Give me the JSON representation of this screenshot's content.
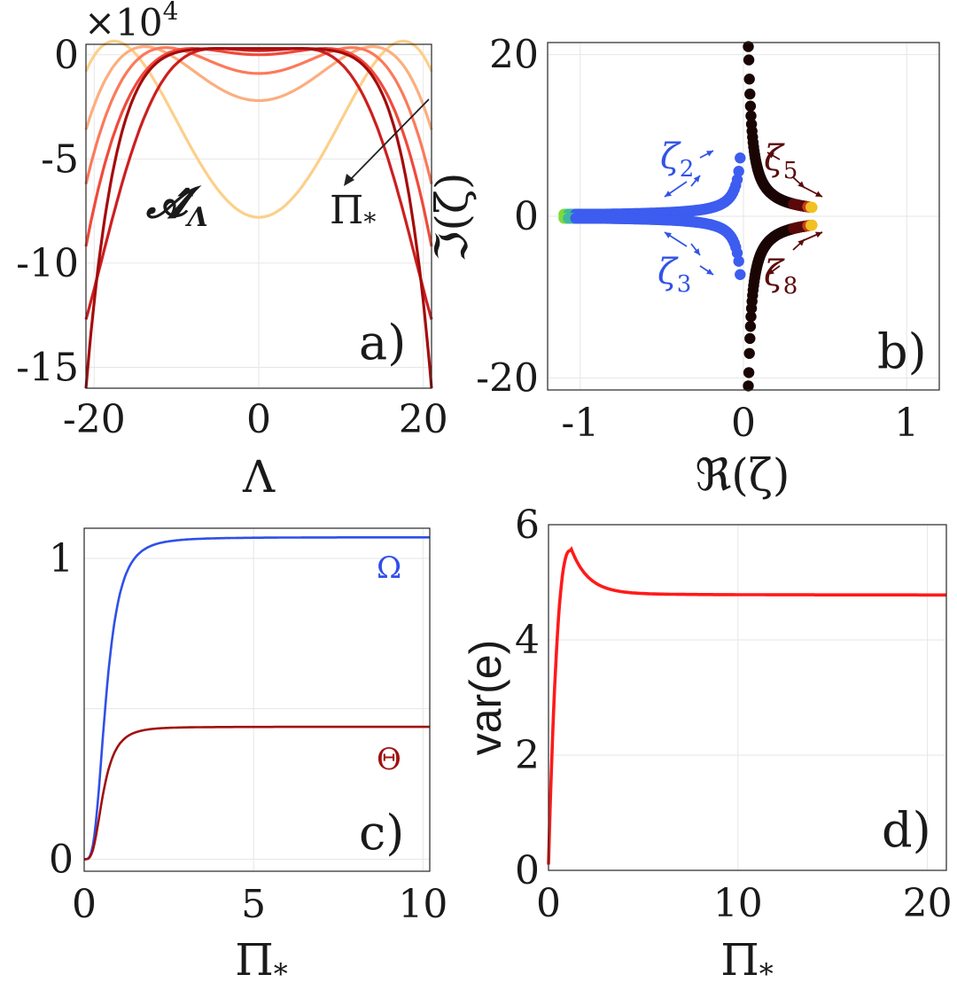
{
  "figure": {
    "panels": [
      "a)",
      "b)",
      "c)",
      "d)"
    ]
  },
  "chart_data": [
    {
      "id": "a",
      "type": "line",
      "title": "",
      "xlabel": "Λ",
      "ylabel": "",
      "multiplier_label": "×10",
      "multiplier_exponent": "4",
      "xlim": [
        -21,
        21
      ],
      "ylim": [
        -16,
        0.5
      ],
      "xticks": [
        -20,
        0,
        20
      ],
      "yticks": [
        0,
        -5,
        -10,
        -15
      ],
      "xtick_labels": [
        "-20",
        "0",
        "20"
      ],
      "ytick_labels": [
        "0",
        "-5",
        "-10",
        "-15"
      ],
      "grid": true,
      "curve_label": "𝓐̂",
      "curve_label_sub": "Λ",
      "arrow_label": "Π",
      "arrow_label_sub": "*",
      "panel_label": "a)",
      "series": [
        {
          "color": "#fdcf8a",
          "max": 0.3,
          "center": -7.8,
          "peakPos": 17,
          "min_edge": -0.8
        },
        {
          "color": "#fcae7e",
          "max": 0.3,
          "center": -2.2,
          "peakPos": 13.5,
          "min_edge": -3.6
        },
        {
          "color": "#fb7a5a",
          "max": 0.3,
          "center": -0.9,
          "peakPos": 11,
          "min_edge": -6.2
        },
        {
          "color": "#ef4a3c",
          "max": 0.3,
          "center": 0.0,
          "peakPos": 8,
          "min_edge": -9.2
        },
        {
          "color": "#cc1f1f",
          "max": 0.3,
          "center": 0.2,
          "peakPos": 5,
          "min_edge": -12.7
        },
        {
          "color": "#a40b0b",
          "max": 0.3,
          "center": 0.3,
          "peakPos": 2,
          "min_edge": -16.0
        }
      ]
    },
    {
      "id": "b",
      "type": "scatter",
      "title": "",
      "xlabel": "ℜ(ζ)",
      "ylabel": "ℑ(ζ)",
      "xlim": [
        -1.2,
        1.2
      ],
      "ylim": [
        -21.5,
        21.5
      ],
      "xticks": [
        -1,
        0,
        1
      ],
      "yticks": [
        20,
        0,
        -20
      ],
      "xtick_labels": [
        "-1",
        "0",
        "1"
      ],
      "ytick_labels": [
        "20",
        "0",
        "-20"
      ],
      "grid": true,
      "panel_label": "b)",
      "annotations": [
        {
          "text": "ζ",
          "sub": "2",
          "color": "#3253e6"
        },
        {
          "text": "ζ",
          "sub": "3",
          "color": "#3253e6"
        },
        {
          "text": "ζ",
          "sub": "5",
          "color": "#5a0b0b"
        },
        {
          "text": "ζ",
          "sub": "8",
          "color": "#5a0b0b"
        }
      ],
      "series": [
        {
          "name": "blue branches",
          "color": "#3d5cf0",
          "re_range": [
            -1.1,
            -0.02
          ],
          "im_range": [
            -21,
            21
          ]
        },
        {
          "name": "dark branches",
          "color": "#1a0505",
          "re_range": [
            0.03,
            0.42
          ],
          "im_range": [
            -21,
            21
          ]
        }
      ]
    },
    {
      "id": "c",
      "type": "line",
      "title": "",
      "xlabel": "Π",
      "xlabel_sub": "*",
      "ylabel": "",
      "xlim": [
        0,
        10.2
      ],
      "ylim": [
        -0.04,
        1.1
      ],
      "xticks": [
        0,
        5,
        10
      ],
      "yticks": [
        1,
        0.5,
        0
      ],
      "xtick_labels": [
        "0",
        "5",
        "10"
      ],
      "ytick_labels": [
        "1",
        "",
        "0"
      ],
      "grid": true,
      "panel_label": "c)",
      "series": [
        {
          "name": "Ω",
          "color": "#2f4fe8",
          "asymptote": 1.07,
          "k": 1.05
        },
        {
          "name": "Θ",
          "color": "#a01010",
          "asymptote": 0.44,
          "k": 1.25
        }
      ]
    },
    {
      "id": "d",
      "type": "line",
      "title": "",
      "xlabel": "Π",
      "xlabel_sub": "*",
      "ylabel": "var(e)",
      "xlim": [
        0,
        21
      ],
      "ylim": [
        0,
        6
      ],
      "xticks": [
        0,
        10,
        20
      ],
      "yticks": [
        6,
        4,
        2,
        0
      ],
      "xtick_labels": [
        "0",
        "10",
        "20"
      ],
      "ytick_labels": [
        "6",
        "4",
        "2",
        "0"
      ],
      "grid": true,
      "panel_label": "d)",
      "series": [
        {
          "color": "#ff1a1a",
          "peak_x": 1.2,
          "peak_y": 5.55,
          "plateau": 4.78
        }
      ]
    }
  ]
}
